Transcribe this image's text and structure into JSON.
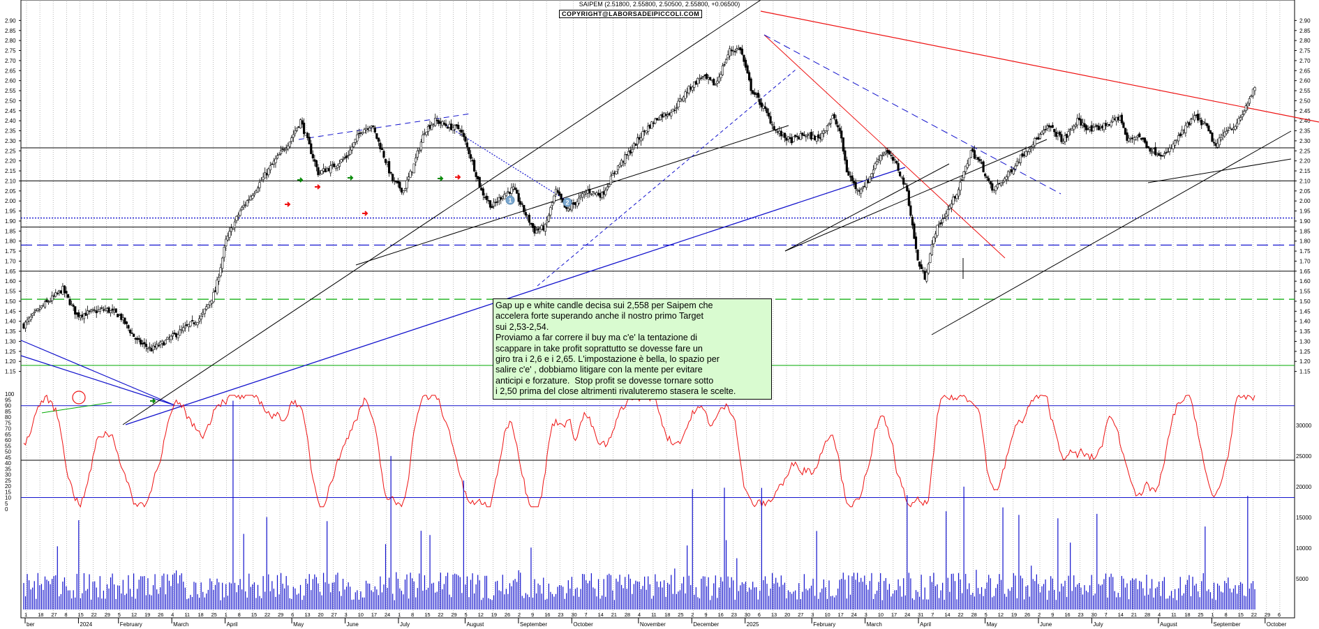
{
  "chart_data": [
    {
      "type": "candlestick",
      "title": "SAIPEM (2.51800, 2.55800, 2.50500, 2.55800, +0.06500)",
      "copyright": "COPYRIGHT@LABORSADEIPICCOLI.COM",
      "note": "Gap up e white candle decisa sui 2,558 per Saipem che\naccelera forte superando anche il nostro primo Target\nsui 2,53-2,54.\nProviamo a far correre il buy ma c'e' la tentazione di\nscappare in take profit soprattutto se dovesse fare un\ngiro tra i 2,6 e i 2,65. L'impostazione è bella, lo spazio per\nsalire c'e' , dobbiamo litigare con la mente per evitare\nanticipi e forzature.  Stop profit se dovesse tornare sotto\ni 2,50 prima del close altrimenti rivaluteremo stasera le scelte.",
      "ylim": [
        1.1,
        2.95
      ],
      "y_ticks": [
        "2.90",
        "2.85",
        "2.80",
        "2.75",
        "2.70",
        "2.65",
        "2.60",
        "2.55",
        "2.50",
        "2.45",
        "2.40",
        "2.35",
        "2.30",
        "2.25",
        "2.20",
        "2.15",
        "2.10",
        "2.05",
        "2.00",
        "1.95",
        "1.90",
        "1.85",
        "1.80",
        "1.75",
        "1.70",
        "1.65",
        "1.60",
        "1.55",
        "1.50",
        "1.45",
        "1.40",
        "1.35",
        "1.30",
        "1.25",
        "1.20",
        "1.15"
      ],
      "last_close": 2.558,
      "horizontal_levels": [
        {
          "value": 2.265,
          "style": "solid",
          "color": "#000000"
        },
        {
          "value": 2.1,
          "style": "solid",
          "color": "#000000"
        },
        {
          "value": 1.915,
          "style": "dotted",
          "color": "#0000cc"
        },
        {
          "value": 1.87,
          "style": "solid",
          "color": "#000000"
        },
        {
          "value": 1.78,
          "style": "dashed",
          "color": "#0000cc"
        },
        {
          "value": 1.65,
          "style": "solid",
          "color": "#000000"
        },
        {
          "value": 1.51,
          "style": "dashed",
          "color": "#00aa00"
        },
        {
          "value": 1.18,
          "style": "solid",
          "color": "#00aa00"
        }
      ],
      "annotations": [
        "1",
        "2"
      ],
      "x_months": [
        "ber",
        "2024",
        "February",
        "March",
        "April",
        "May",
        "June",
        "July",
        "August",
        "September",
        "October",
        "November",
        "December",
        "2025",
        "February",
        "March",
        "April",
        "May",
        "June",
        "July",
        "August",
        "September",
        "October"
      ],
      "x_days": [
        "1",
        "18",
        "27",
        "8",
        "15",
        "22",
        "29",
        "5",
        "12",
        "19",
        "26",
        "4",
        "11",
        "18",
        "25",
        "1",
        "8",
        "15",
        "22",
        "29",
        "6",
        "13",
        "20",
        "27",
        "3",
        "10",
        "17",
        "24",
        "1",
        "8",
        "15",
        "22",
        "29",
        "5",
        "12",
        "19",
        "26",
        "2",
        "9",
        "16",
        "23",
        "30",
        "7",
        "14",
        "21",
        "28",
        "4",
        "11",
        "18",
        "25",
        "2",
        "9",
        "16",
        "23",
        "30",
        "6",
        "13",
        "20",
        "27",
        "3",
        "10",
        "17",
        "24",
        "3",
        "10",
        "17",
        "24",
        "31",
        "7",
        "14",
        "22",
        "28",
        "5",
        "12",
        "19",
        "26",
        "2",
        "9",
        "16",
        "23",
        "30",
        "7",
        "14",
        "21",
        "28",
        "4",
        "11",
        "18",
        "25",
        "1",
        "8",
        "15",
        "22",
        "29",
        "6"
      ],
      "colors": {
        "up_candle": "#ffffff",
        "down_candle": "#000000",
        "trend_red": "#ee1111",
        "trend_blue": "#1111cc",
        "trend_black": "#000000"
      }
    },
    {
      "type": "line",
      "name": "oscillator",
      "ylim": [
        0,
        105
      ],
      "y_ticks": [
        "100",
        "95",
        "90",
        "85",
        "80",
        "75",
        "70",
        "65",
        "60",
        "55",
        "50",
        "45",
        "40",
        "35",
        "30",
        "25",
        "20",
        "15",
        "10",
        "5",
        "0"
      ],
      "levels": [
        90,
        10
      ],
      "color": "#ee1111"
    },
    {
      "type": "bar",
      "name": "volume",
      "ylim": [
        0,
        36000
      ],
      "y_ticks": [
        "30000",
        "25000",
        "20000",
        "15000",
        "10000",
        "5000"
      ],
      "color": "#1111cc"
    }
  ]
}
